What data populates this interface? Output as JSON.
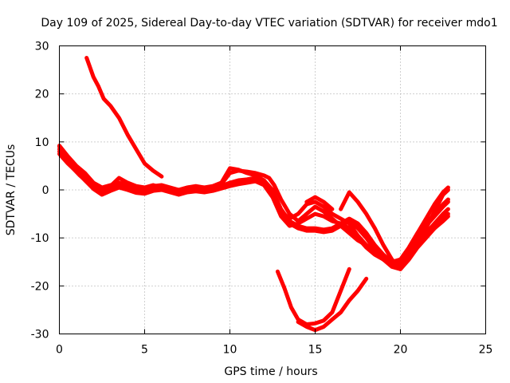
{
  "chart_data": {
    "type": "line",
    "title": "Day 109 of 2025, Sidereal Day-to-day VTEC variation (SDTVAR) for receiver mdo1",
    "xlabel": "GPS time / hours",
    "ylabel": "SDTVAR / TECUs",
    "xlim": [
      0,
      25
    ],
    "ylim": [
      -30,
      30
    ],
    "xticks": [
      0,
      5,
      10,
      15,
      20,
      25
    ],
    "yticks": [
      -30,
      -20,
      -10,
      0,
      10,
      20,
      30
    ],
    "x_tick_labels": [
      "0",
      "5",
      "10",
      "15",
      "20",
      "25"
    ],
    "y_tick_labels": [
      "-30",
      "-20",
      "-10",
      "0",
      "10",
      "20",
      "30"
    ],
    "grid": true,
    "legend": "none",
    "color": "#ff0000",
    "series": [
      {
        "name": "trace-1",
        "points": [
          [
            0.0,
            9.0
          ],
          [
            0.4,
            6.5
          ],
          [
            0.8,
            4.5
          ],
          [
            1.2,
            3.0
          ],
          [
            1.6,
            1.8
          ],
          [
            2.0,
            0.8
          ],
          [
            2.5,
            -0.5
          ],
          [
            3.0,
            0.3
          ],
          [
            3.5,
            1.2
          ],
          [
            4.0,
            0.8
          ],
          [
            4.5,
            0.2
          ],
          [
            5.0,
            -0.3
          ],
          [
            5.5,
            0.5
          ],
          [
            6.0,
            0.8
          ],
          [
            6.5,
            0.0
          ],
          [
            7.0,
            -0.5
          ],
          [
            7.5,
            0.2
          ],
          [
            8.0,
            0.4
          ],
          [
            8.5,
            0.0
          ],
          [
            9.0,
            0.3
          ],
          [
            9.5,
            0.8
          ],
          [
            10.0,
            1.5
          ],
          [
            10.5,
            2.0
          ],
          [
            11.0,
            2.2
          ],
          [
            11.5,
            2.5
          ],
          [
            12.0,
            2.0
          ],
          [
            12.5,
            0.0
          ],
          [
            13.0,
            -4.0
          ],
          [
            13.5,
            -6.5
          ],
          [
            14.0,
            -7.5
          ],
          [
            14.5,
            -8.0
          ],
          [
            15.0,
            -8.0
          ],
          [
            15.5,
            -8.3
          ],
          [
            16.0,
            -8.0
          ],
          [
            16.5,
            -7.0
          ],
          [
            17.0,
            -6.0
          ],
          [
            17.5,
            -7.0
          ],
          [
            18.0,
            -9.0
          ],
          [
            18.5,
            -11.5
          ],
          [
            19.0,
            -13.5
          ],
          [
            19.5,
            -15.0
          ],
          [
            20.0,
            -15.5
          ],
          [
            20.5,
            -13.5
          ],
          [
            21.0,
            -11.0
          ],
          [
            21.5,
            -9.0
          ],
          [
            22.0,
            -7.0
          ],
          [
            22.5,
            -5.0
          ],
          [
            22.8,
            -4.0
          ]
        ]
      },
      {
        "name": "trace-2",
        "points": [
          [
            0.0,
            8.5
          ],
          [
            0.5,
            6.0
          ],
          [
            1.0,
            4.2
          ],
          [
            1.5,
            2.2
          ],
          [
            2.0,
            0.5
          ],
          [
            2.5,
            -0.8
          ],
          [
            3.0,
            0.0
          ],
          [
            3.5,
            0.8
          ],
          [
            4.0,
            0.2
          ],
          [
            4.5,
            -0.4
          ],
          [
            5.0,
            -0.6
          ],
          [
            5.5,
            0.0
          ],
          [
            6.0,
            0.3
          ],
          [
            6.5,
            -0.2
          ],
          [
            7.0,
            -0.8
          ],
          [
            7.5,
            -0.2
          ],
          [
            8.0,
            0.0
          ],
          [
            8.5,
            -0.2
          ],
          [
            9.0,
            0.0
          ],
          [
            9.5,
            0.5
          ],
          [
            10.0,
            1.0
          ],
          [
            10.5,
            1.5
          ],
          [
            11.0,
            1.8
          ],
          [
            11.5,
            2.0
          ],
          [
            12.0,
            1.5
          ],
          [
            12.5,
            -1.0
          ],
          [
            13.0,
            -5.0
          ],
          [
            13.5,
            -7.0
          ],
          [
            14.0,
            -8.0
          ],
          [
            14.5,
            -8.5
          ],
          [
            15.0,
            -8.5
          ],
          [
            15.5,
            -8.8
          ],
          [
            16.0,
            -8.5
          ],
          [
            16.5,
            -7.5
          ],
          [
            17.0,
            -6.5
          ],
          [
            17.5,
            -8.0
          ],
          [
            18.0,
            -10.0
          ],
          [
            18.5,
            -12.5
          ],
          [
            19.0,
            -14.5
          ],
          [
            19.5,
            -16.0
          ],
          [
            20.0,
            -16.5
          ],
          [
            20.5,
            -14.5
          ],
          [
            21.0,
            -12.0
          ],
          [
            21.5,
            -10.0
          ],
          [
            22.0,
            -8.0
          ],
          [
            22.5,
            -6.0
          ],
          [
            22.8,
            -5.0
          ]
        ]
      },
      {
        "name": "trace-3",
        "points": [
          [
            0.0,
            7.5
          ],
          [
            0.5,
            5.5
          ],
          [
            1.0,
            3.8
          ],
          [
            1.5,
            2.0
          ],
          [
            2.0,
            0.2
          ],
          [
            2.5,
            -1.0
          ],
          [
            3.0,
            -0.2
          ],
          [
            3.5,
            0.5
          ],
          [
            4.0,
            0.0
          ],
          [
            4.5,
            -0.6
          ],
          [
            5.0,
            -0.8
          ],
          [
            5.5,
            -0.2
          ],
          [
            6.0,
            0.0
          ],
          [
            6.5,
            -0.5
          ],
          [
            7.0,
            -1.0
          ],
          [
            7.5,
            -0.5
          ],
          [
            8.0,
            -0.3
          ],
          [
            8.5,
            -0.5
          ],
          [
            9.0,
            -0.2
          ],
          [
            9.5,
            0.3
          ],
          [
            10.0,
            0.8
          ],
          [
            10.5,
            1.2
          ],
          [
            11.0,
            1.5
          ],
          [
            11.5,
            1.8
          ],
          [
            12.0,
            1.0
          ],
          [
            12.5,
            -1.5
          ],
          [
            13.0,
            -5.5
          ],
          [
            13.5,
            -7.5
          ],
          [
            14.0,
            -7.0
          ],
          [
            14.5,
            -6.0
          ],
          [
            15.0,
            -5.0
          ],
          [
            15.5,
            -5.5
          ],
          [
            16.0,
            -6.5
          ],
          [
            16.5,
            -7.0
          ],
          [
            17.0,
            -8.0
          ],
          [
            17.5,
            -10.0
          ],
          [
            18.0,
            -12.0
          ],
          [
            18.5,
            -13.5
          ],
          [
            19.0,
            -14.5
          ],
          [
            19.5,
            -15.5
          ],
          [
            20.0,
            -16.0
          ],
          [
            20.5,
            -14.0
          ],
          [
            21.0,
            -11.5
          ],
          [
            21.5,
            -9.5
          ],
          [
            22.0,
            -8.0
          ],
          [
            22.5,
            -6.5
          ],
          [
            22.8,
            -5.5
          ]
        ]
      },
      {
        "name": "trace-4",
        "points": [
          [
            0.0,
            8.0
          ],
          [
            0.5,
            5.8
          ],
          [
            1.0,
            4.5
          ],
          [
            1.5,
            2.5
          ],
          [
            2.0,
            1.0
          ],
          [
            2.5,
            0.0
          ],
          [
            3.0,
            0.8
          ],
          [
            3.5,
            2.5
          ],
          [
            4.0,
            1.5
          ],
          [
            4.5,
            0.8
          ],
          [
            5.0,
            0.5
          ],
          [
            5.5,
            1.0
          ],
          [
            6.0,
            0.5
          ],
          [
            6.5,
            0.2
          ],
          [
            7.0,
            0.0
          ],
          [
            7.5,
            0.5
          ],
          [
            8.0,
            0.6
          ],
          [
            8.5,
            0.3
          ],
          [
            9.0,
            0.5
          ],
          [
            9.5,
            1.2
          ],
          [
            10.0,
            3.5
          ],
          [
            10.5,
            4.0
          ],
          [
            11.0,
            3.8
          ],
          [
            11.5,
            3.5
          ],
          [
            12.0,
            3.0
          ],
          [
            12.3,
            2.5
          ],
          [
            12.6,
            1.0
          ],
          [
            13.0,
            -2.0
          ],
          [
            13.5,
            -5.0
          ],
          [
            14.0,
            -6.5
          ],
          [
            14.5,
            -5.0
          ],
          [
            15.0,
            -3.5
          ],
          [
            15.5,
            -4.5
          ],
          [
            16.0,
            -6.0
          ],
          [
            16.5,
            -7.5
          ],
          [
            17.0,
            -9.0
          ],
          [
            17.5,
            -10.5
          ],
          [
            18.0,
            -11.5
          ],
          [
            18.5,
            -13.0
          ],
          [
            19.0,
            -14.0
          ],
          [
            19.5,
            -15.0
          ],
          [
            20.0,
            -14.5
          ],
          [
            20.5,
            -12.0
          ],
          [
            21.0,
            -9.0
          ],
          [
            21.5,
            -7.0
          ],
          [
            22.0,
            -5.0
          ],
          [
            22.5,
            -3.0
          ],
          [
            22.8,
            -2.0
          ]
        ]
      },
      {
        "name": "trace-5",
        "points": [
          [
            0.0,
            9.2
          ],
          [
            0.5,
            7.0
          ],
          [
            1.0,
            5.0
          ],
          [
            1.5,
            3.5
          ],
          [
            2.0,
            1.5
          ],
          [
            2.5,
            0.5
          ],
          [
            3.0,
            1.0
          ],
          [
            3.5,
            1.5
          ],
          [
            4.0,
            1.0
          ],
          [
            4.5,
            0.5
          ],
          [
            5.0,
            0.0
          ],
          [
            5.5,
            0.8
          ],
          [
            6.0,
            1.0
          ],
          [
            6.5,
            0.5
          ],
          [
            7.0,
            0.0
          ],
          [
            7.5,
            0.5
          ],
          [
            8.0,
            0.8
          ],
          [
            8.5,
            0.5
          ],
          [
            9.0,
            0.8
          ],
          [
            9.5,
            1.5
          ],
          [
            10.0,
            4.5
          ],
          [
            10.5,
            4.2
          ],
          [
            11.0,
            3.5
          ],
          [
            11.5,
            3.0
          ],
          [
            12.0,
            2.0
          ],
          [
            12.5,
            -0.5
          ],
          [
            13.0,
            -4.5
          ],
          [
            13.5,
            -6.0
          ],
          [
            14.0,
            -5.0
          ],
          [
            14.5,
            -3.0
          ],
          [
            15.0,
            -2.5
          ],
          [
            15.5,
            -3.5
          ],
          [
            16.0,
            -5.0
          ],
          [
            16.5,
            -6.0
          ],
          [
            17.0,
            -7.0
          ],
          [
            17.5,
            -9.5
          ],
          [
            18.0,
            -11.5
          ],
          [
            18.5,
            -13.0
          ],
          [
            19.0,
            -14.5
          ],
          [
            19.5,
            -15.5
          ],
          [
            20.0,
            -15.0
          ],
          [
            20.5,
            -13.0
          ],
          [
            21.0,
            -10.0
          ],
          [
            21.5,
            -7.5
          ],
          [
            22.0,
            -5.5
          ],
          [
            22.5,
            -3.5
          ],
          [
            22.8,
            -2.5
          ]
        ]
      },
      {
        "name": "trace-6",
        "points": [
          [
            1.6,
            27.5
          ],
          [
            1.8,
            25.5
          ],
          [
            2.0,
            23.5
          ],
          [
            2.3,
            21.5
          ],
          [
            2.6,
            19.0
          ],
          [
            3.0,
            17.5
          ],
          [
            3.5,
            15.0
          ],
          [
            4.0,
            11.5
          ],
          [
            4.5,
            8.5
          ],
          [
            5.0,
            5.5
          ],
          [
            5.5,
            4.0
          ],
          [
            6.0,
            2.8
          ]
        ]
      },
      {
        "name": "trace-7",
        "points": [
          [
            12.8,
            -17.0
          ],
          [
            13.2,
            -20.5
          ],
          [
            13.6,
            -24.5
          ],
          [
            14.0,
            -27.0
          ],
          [
            14.5,
            -28.0
          ],
          [
            15.0,
            -27.8
          ],
          [
            15.5,
            -27.2
          ],
          [
            16.0,
            -25.5
          ],
          [
            16.5,
            -21.0
          ],
          [
            17.0,
            -16.5
          ]
        ]
      },
      {
        "name": "trace-8",
        "points": [
          [
            14.0,
            -27.5
          ],
          [
            14.5,
            -28.5
          ],
          [
            15.0,
            -29.2
          ],
          [
            15.5,
            -28.5
          ],
          [
            16.0,
            -27.0
          ],
          [
            16.5,
            -25.5
          ],
          [
            17.0,
            -23.0
          ],
          [
            17.5,
            -21.0
          ],
          [
            18.0,
            -18.5
          ]
        ]
      },
      {
        "name": "trace-9",
        "points": [
          [
            14.5,
            -2.5
          ],
          [
            15.0,
            -1.5
          ],
          [
            15.5,
            -2.5
          ],
          [
            16.0,
            -4.0
          ]
        ]
      },
      {
        "name": "trace-10",
        "points": [
          [
            16.5,
            -4.0
          ],
          [
            17.0,
            -0.5
          ],
          [
            17.5,
            -2.5
          ],
          [
            18.0,
            -5.0
          ],
          [
            18.5,
            -8.0
          ],
          [
            19.0,
            -11.5
          ],
          [
            19.5,
            -14.5
          ],
          [
            20.0,
            -16.5
          ],
          [
            20.5,
            -14.0
          ],
          [
            21.0,
            -11.0
          ],
          [
            21.5,
            -8.0
          ],
          [
            22.0,
            -4.5
          ],
          [
            22.5,
            -1.0
          ],
          [
            22.8,
            0.0
          ]
        ]
      },
      {
        "name": "trace-11",
        "points": [
          [
            20.5,
            -12.0
          ],
          [
            21.0,
            -9.0
          ],
          [
            21.5,
            -6.0
          ],
          [
            22.0,
            -3.0
          ],
          [
            22.5,
            -0.5
          ],
          [
            22.8,
            0.5
          ]
        ]
      }
    ]
  }
}
